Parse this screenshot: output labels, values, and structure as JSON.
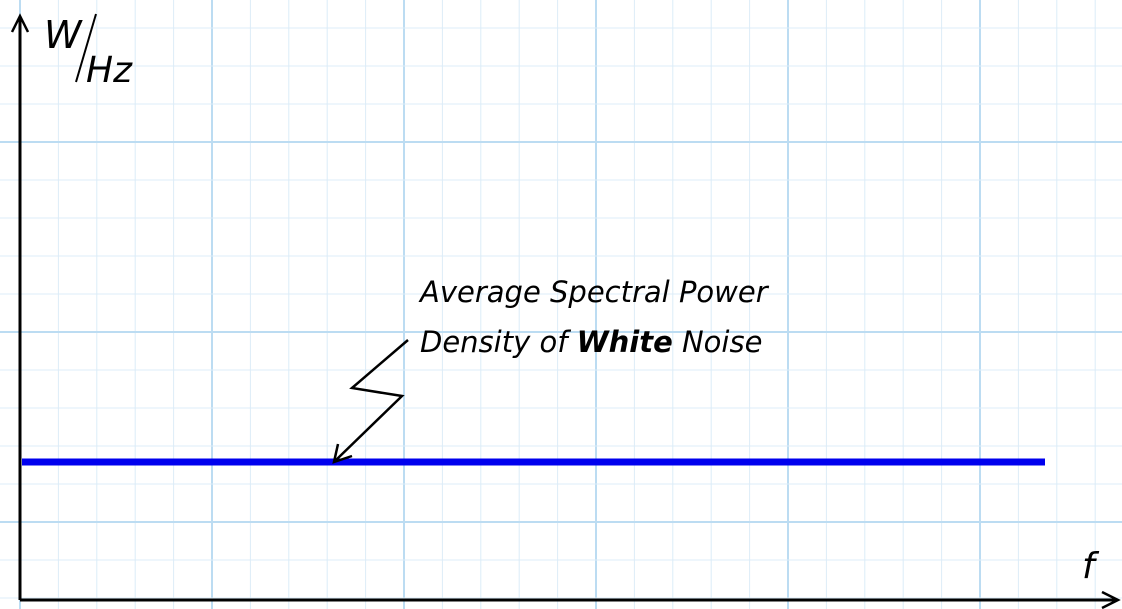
{
  "axes": {
    "y_label": {
      "numerator": "W",
      "denominator": "Hz"
    },
    "x_label": "f"
  },
  "annotation": {
    "line1": "Average Spectral Power",
    "line2": {
      "before": "Density of",
      "bold": "White",
      "after": "Noise"
    }
  }
}
